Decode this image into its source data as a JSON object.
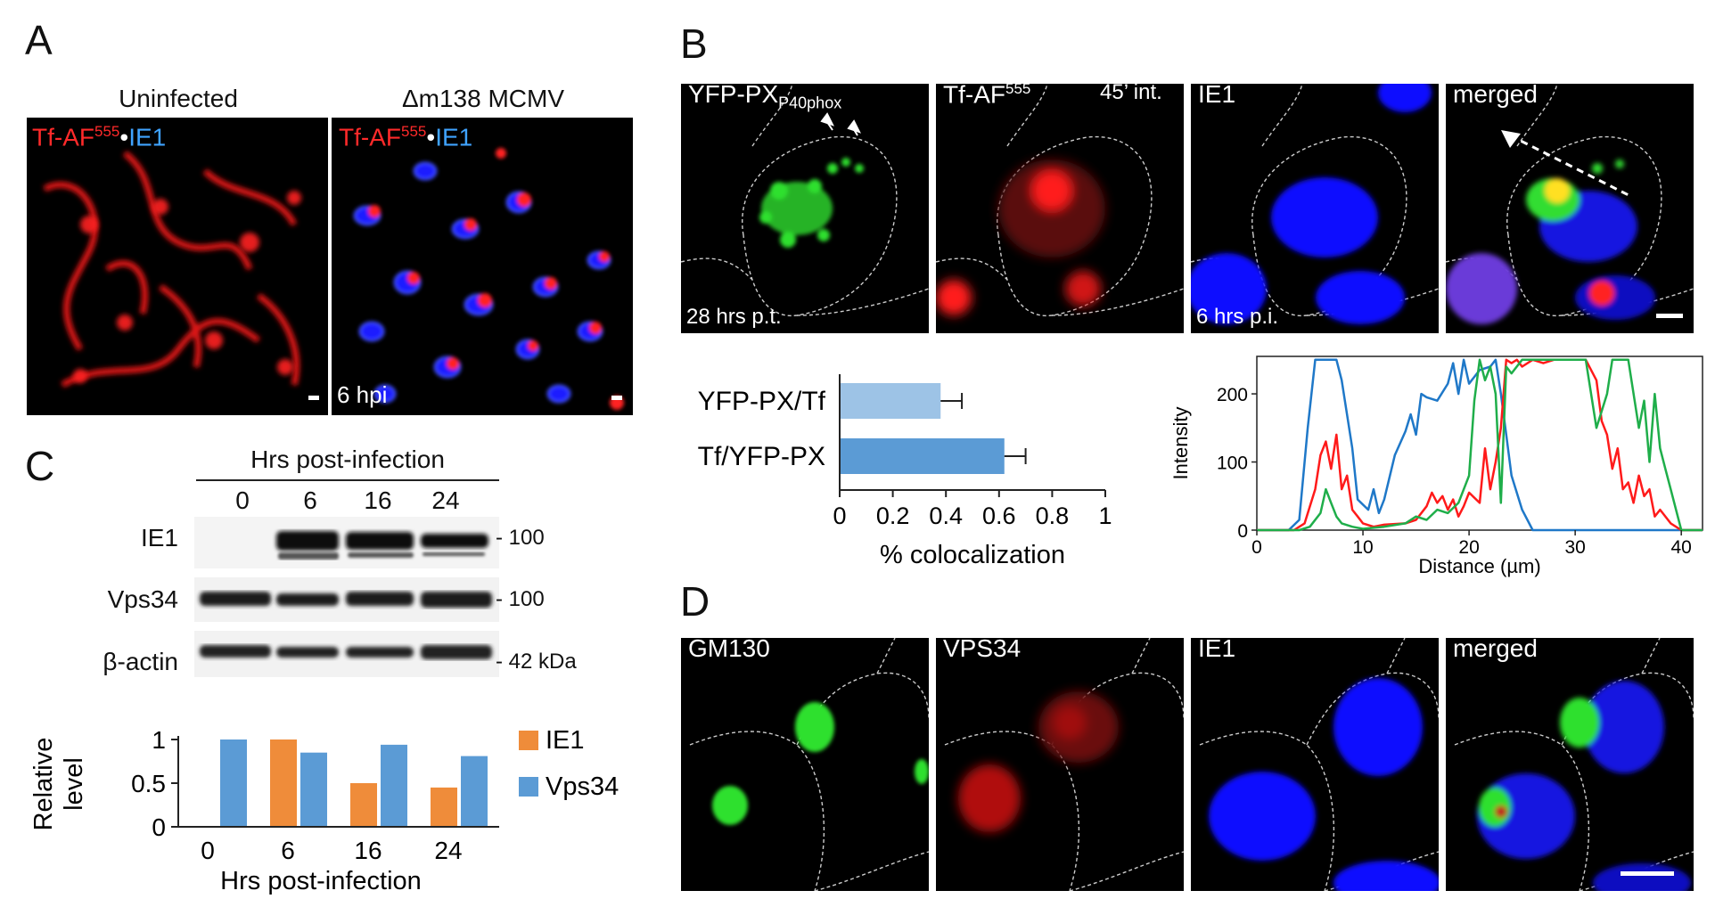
{
  "panels": {
    "A": "A",
    "B": "B",
    "C": "C",
    "D": "D"
  },
  "panelA": {
    "title_left": "Uninfected",
    "title_right": "Δm138 MCMV",
    "left_label": {
      "tf": "Tf-AF",
      "sup": "555",
      "dot": "•",
      "ie1": "IE1"
    },
    "right_label": {
      "tf": "Tf-AF",
      "sup": "555",
      "dot": "•",
      "ie1": "IE1"
    },
    "timepoint": "6 hpi"
  },
  "panelB": {
    "images": [
      {
        "label": "YFP-PX",
        "sub": "P40phox",
        "footer": "28 hrs p.t."
      },
      {
        "label": "Tf-AF",
        "sup": "555",
        "extra": "45’ int."
      },
      {
        "label": "IE1",
        "footer": "6 hrs p.i."
      },
      {
        "label": "merged"
      }
    ]
  },
  "panelC": {
    "blot_title": "Hrs post-infection",
    "lanes": [
      "0",
      "6",
      "16",
      "24"
    ],
    "rows": [
      {
        "name": "IE1",
        "marker": "- 100"
      },
      {
        "name": "Vps34",
        "marker": "- 100"
      },
      {
        "name": "β-actin",
        "marker": "- 42 kDa"
      }
    ]
  },
  "panelD": {
    "images": [
      {
        "label": "GM130"
      },
      {
        "label": "VPS34"
      },
      {
        "label": "IE1"
      },
      {
        "label": "merged"
      }
    ]
  },
  "colors": {
    "orange": "#ef8c3a",
    "blue": "#5b9bd5",
    "light_blue": "#9dc3e6",
    "bar_blue": "#5b9bd5",
    "line_red": "#ff1a1a",
    "line_green": "#1fae4a",
    "line_blue": "#1f78c8"
  },
  "chart_data": [
    {
      "type": "bar",
      "orientation": "horizontal",
      "categories": [
        "YFP-PX/Tf",
        "Tf/YFP-PX"
      ],
      "values": [
        0.38,
        0.62
      ],
      "errors": [
        0.08,
        0.08
      ],
      "colors": [
        "#9dc3e6",
        "#5b9bd5"
      ],
      "xlabel": "% colocalization",
      "xlim": [
        0,
        1
      ],
      "xticks": [
        "0",
        "0.2",
        "0.4",
        "0.6",
        "0.8",
        "1"
      ]
    },
    {
      "type": "line",
      "xlabel": "Distance (µm)",
      "ylabel": "Intensity",
      "xlim": [
        0,
        42
      ],
      "ylim": [
        0,
        255
      ],
      "xticks": [
        "0",
        "10",
        "20",
        "30",
        "40"
      ],
      "yticks": [
        "0",
        "100",
        "200"
      ],
      "series": [
        {
          "color": "#1f78c8",
          "x": [
            0,
            3,
            4,
            4.8,
            5.5,
            6.5,
            7.5,
            8,
            9,
            9.5,
            10.5,
            11,
            11.5,
            12,
            13,
            14,
            14.5,
            15,
            15.5,
            16,
            17,
            18,
            18.5,
            19,
            19.5,
            20,
            21,
            22,
            22.5,
            23,
            23.5,
            24,
            25,
            26,
            42
          ],
          "y": [
            0,
            0,
            15,
            150,
            250,
            250,
            250,
            220,
            120,
            45,
            30,
            60,
            25,
            45,
            110,
            145,
            170,
            140,
            200,
            195,
            190,
            215,
            245,
            200,
            250,
            215,
            235,
            240,
            250,
            200,
            140,
            80,
            30,
            0,
            0
          ]
        },
        {
          "color": "#ff1a1a",
          "x": [
            0,
            3.5,
            4.5,
            5.5,
            6,
            6.5,
            7,
            7.5,
            8,
            8.5,
            9,
            9.5,
            10,
            11,
            12,
            14,
            15,
            16,
            16.5,
            17,
            17.5,
            18,
            18.5,
            19,
            19.5,
            20,
            21,
            21.5,
            22,
            22.5,
            23,
            23.5,
            24,
            24.5,
            25,
            26,
            27,
            28,
            29,
            30,
            31,
            32,
            32.5,
            33,
            33.5,
            34,
            34.5,
            35,
            35.5,
            36,
            36.5,
            37,
            37.5,
            38,
            39,
            40,
            42
          ],
          "y": [
            0,
            0,
            10,
            60,
            110,
            130,
            90,
            140,
            60,
            80,
            30,
            20,
            10,
            5,
            8,
            10,
            15,
            35,
            55,
            40,
            50,
            30,
            45,
            20,
            35,
            55,
            40,
            120,
            60,
            100,
            150,
            250,
            245,
            250,
            240,
            250,
            245,
            250,
            250,
            250,
            250,
            220,
            160,
            140,
            90,
            120,
            60,
            70,
            40,
            80,
            50,
            60,
            20,
            30,
            10,
            0,
            0
          ]
        },
        {
          "color": "#1fae4a",
          "x": [
            0,
            4,
            5,
            6,
            6.5,
            7,
            7.5,
            8,
            9,
            10,
            12,
            14,
            15,
            16,
            17,
            18,
            19,
            20,
            20.5,
            21,
            21.5,
            22,
            22.5,
            23,
            23.5,
            24,
            25,
            26,
            27,
            28,
            29,
            30,
            31,
            32,
            33,
            33.5,
            34,
            35,
            36,
            36.5,
            37,
            37.5,
            38,
            38.5,
            39,
            40,
            42
          ],
          "y": [
            0,
            0,
            5,
            25,
            60,
            40,
            20,
            10,
            5,
            2,
            5,
            10,
            20,
            15,
            30,
            25,
            40,
            80,
            190,
            250,
            220,
            240,
            200,
            40,
            240,
            230,
            250,
            250,
            250,
            250,
            250,
            250,
            250,
            150,
            200,
            250,
            250,
            250,
            150,
            190,
            100,
            200,
            120,
            90,
            60,
            0,
            0
          ]
        }
      ]
    },
    {
      "type": "bar",
      "categories": [
        "0",
        "6",
        "16",
        "24"
      ],
      "series": [
        {
          "name": "IE1",
          "values": [
            0,
            1.0,
            0.5,
            0.45
          ],
          "color": "#ef8c3a"
        },
        {
          "name": "Vps34",
          "values": [
            1.0,
            0.85,
            0.94,
            0.81
          ],
          "color": "#5b9bd5"
        }
      ],
      "xlabel": "Hrs post-infection",
      "ylabel": "Relative level",
      "ylim": [
        0,
        1
      ],
      "yticks": [
        "0",
        "0.5",
        "1"
      ]
    }
  ]
}
